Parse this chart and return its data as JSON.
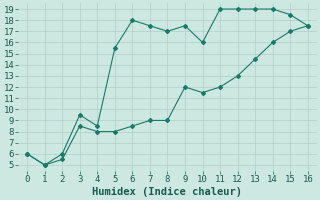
{
  "xlabel": "Humidex (Indice chaleur)",
  "ylabel": "",
  "bg_color": "#cce8e0",
  "grid_color": "#b0cfc8",
  "line_color": "#1a7a6a",
  "upper_x": [
    0,
    1,
    2,
    3,
    4,
    5,
    6,
    7,
    8,
    9,
    10,
    11,
    12,
    13,
    14,
    15,
    16
  ],
  "upper_y": [
    6,
    5,
    6,
    9.5,
    8.5,
    15.5,
    18,
    17.5,
    17,
    17.5,
    16,
    19,
    19,
    19,
    19,
    18.5,
    17.5
  ],
  "lower_x": [
    0,
    1,
    2,
    3,
    4,
    5,
    6,
    7,
    8,
    9,
    10,
    11,
    12,
    13,
    14,
    15,
    16
  ],
  "lower_y": [
    6,
    5,
    5.5,
    8.5,
    8,
    8,
    8.5,
    9,
    9,
    12,
    11.5,
    12,
    13,
    14.5,
    16,
    17,
    17.5
  ],
  "xlim": [
    -0.5,
    16.5
  ],
  "ylim": [
    4.5,
    19.5
  ],
  "xticks": [
    0,
    1,
    2,
    3,
    4,
    5,
    6,
    7,
    8,
    9,
    10,
    11,
    12,
    13,
    14,
    15,
    16
  ],
  "yticks": [
    5,
    6,
    7,
    8,
    9,
    10,
    11,
    12,
    13,
    14,
    15,
    16,
    17,
    18,
    19
  ],
  "marker": "D",
  "marker_size": 2.0,
  "line_width": 0.8,
  "tick_font_size": 6.5,
  "xlabel_font_size": 7.5
}
